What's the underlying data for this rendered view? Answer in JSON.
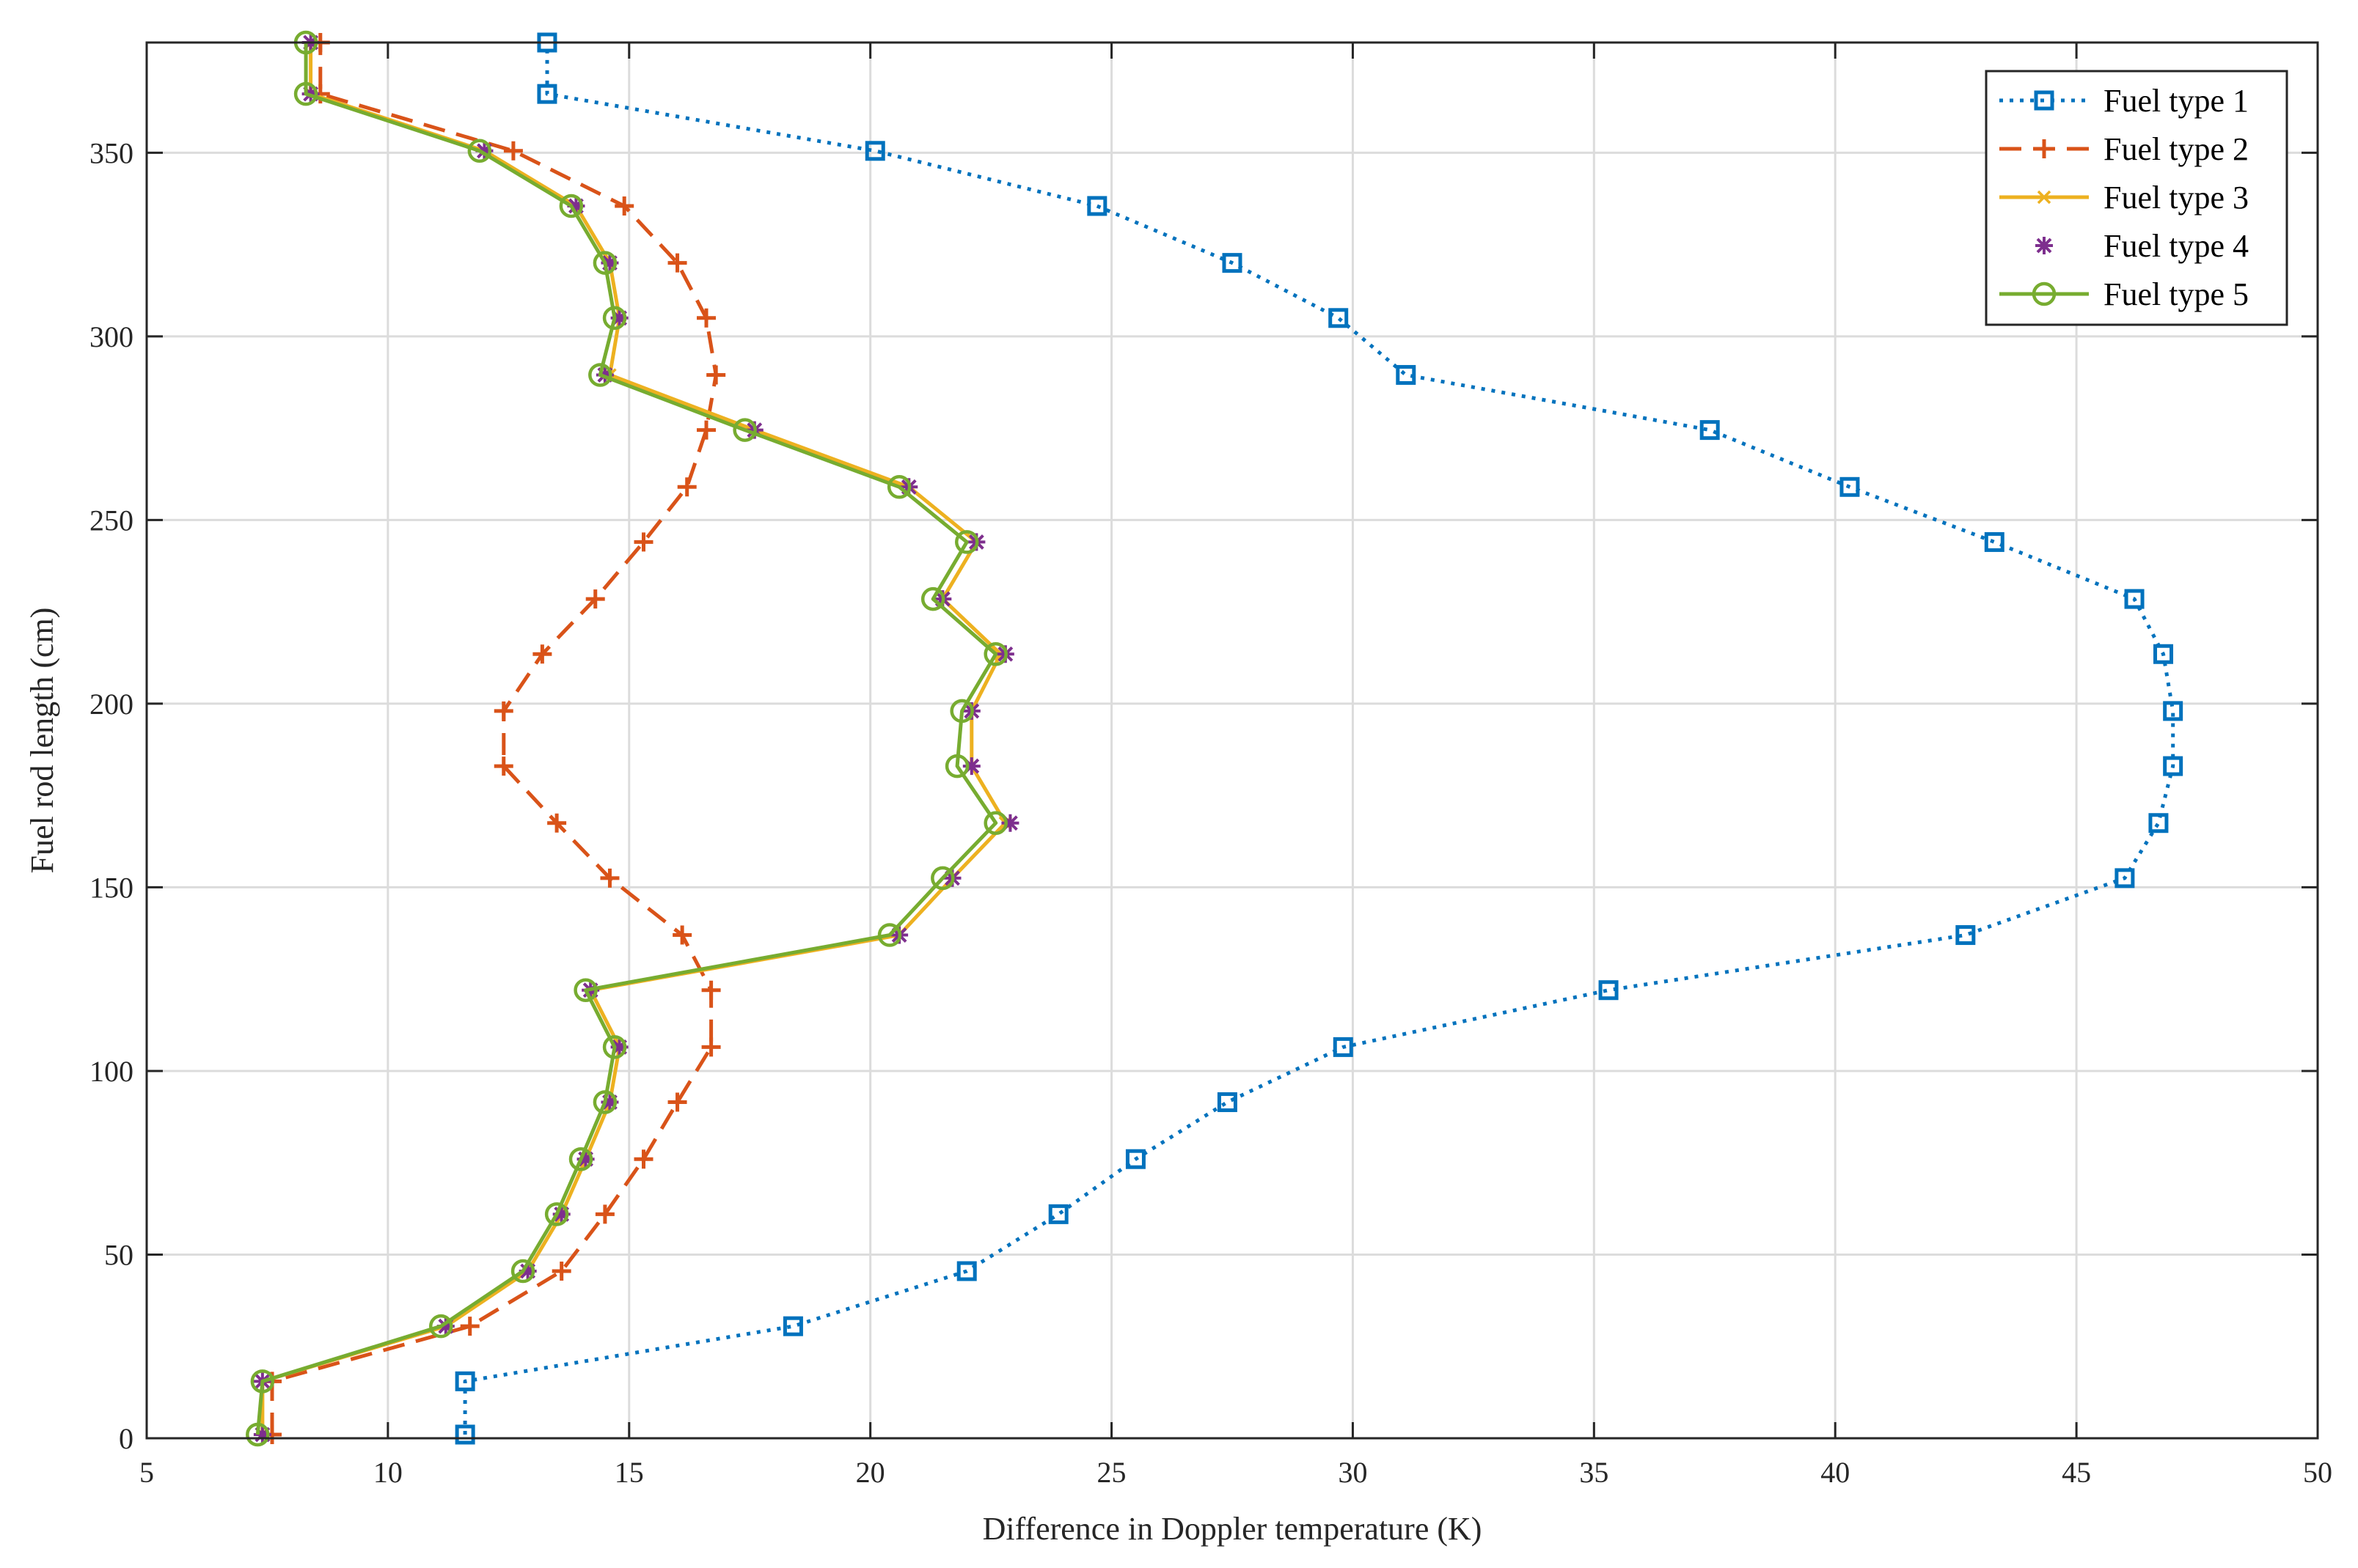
{
  "chart_data": {
    "type": "line",
    "xlabel": "Difference in Doppler temperature (K)",
    "ylabel": "Fuel rod length (cm)",
    "xlim": [
      5,
      50
    ],
    "ylim": [
      0,
      380
    ],
    "xticks": [
      5,
      10,
      15,
      20,
      25,
      30,
      35,
      40,
      45,
      50
    ],
    "yticks": [
      0,
      50,
      100,
      150,
      200,
      250,
      300,
      350
    ],
    "grid": true,
    "legend_position": "top-right",
    "y": [
      1,
      15.5,
      30.5,
      45.5,
      61,
      76,
      91.5,
      106.5,
      122,
      137,
      152.5,
      167.5,
      183,
      198,
      213.5,
      228.5,
      244,
      259,
      274.5,
      289.5,
      305,
      320,
      335.5,
      350.5,
      366,
      380
    ],
    "series": [
      {
        "name": "Fuel type 1",
        "color": "#0072BD",
        "line_style": "dotted",
        "marker": "square",
        "x": [
          11.6,
          11.6,
          18.4,
          22.0,
          23.9,
          25.5,
          27.4,
          29.8,
          35.3,
          42.7,
          46.0,
          46.7,
          47.0,
          47.0,
          46.8,
          46.2,
          43.3,
          40.3,
          37.4,
          31.1,
          29.7,
          27.5,
          24.7,
          20.1,
          13.3,
          13.3
        ]
      },
      {
        "name": "Fuel type 2",
        "color": "#D95319",
        "line_style": "dashed",
        "marker": "plus",
        "x": [
          7.6,
          7.6,
          11.7,
          13.6,
          14.5,
          15.3,
          16.0,
          16.7,
          16.7,
          16.1,
          14.6,
          13.5,
          12.4,
          12.4,
          13.2,
          14.3,
          15.3,
          16.2,
          16.6,
          16.8,
          16.6,
          16.0,
          14.9,
          12.6,
          8.6,
          8.6
        ]
      },
      {
        "name": "Fuel type 3",
        "color": "#EDB120",
        "line_style": "solid",
        "marker": "x",
        "x": [
          7.4,
          7.4,
          11.2,
          12.9,
          13.6,
          14.1,
          14.6,
          14.8,
          14.2,
          20.6,
          21.7,
          22.8,
          22.1,
          22.1,
          22.7,
          21.5,
          22.2,
          20.8,
          17.6,
          14.6,
          14.8,
          14.6,
          13.9,
          12.0,
          8.4,
          8.4
        ]
      },
      {
        "name": "Fuel type 4",
        "color": "#7E2F8E",
        "line_style": "none",
        "marker": "asterisk",
        "x": [
          7.4,
          7.4,
          11.2,
          12.9,
          13.6,
          14.1,
          14.6,
          14.8,
          14.2,
          20.6,
          21.7,
          22.9,
          22.1,
          22.1,
          22.8,
          21.5,
          22.2,
          20.8,
          17.6,
          14.5,
          14.8,
          14.6,
          13.9,
          12.0,
          8.4,
          8.4
        ]
      },
      {
        "name": "Fuel type 5",
        "color": "#77AC30",
        "line_style": "solid",
        "marker": "circle",
        "x": [
          7.3,
          7.4,
          11.1,
          12.8,
          13.5,
          14.0,
          14.5,
          14.7,
          14.1,
          20.4,
          21.5,
          22.6,
          21.8,
          21.9,
          22.6,
          21.3,
          22.0,
          20.6,
          17.4,
          14.4,
          14.7,
          14.5,
          13.8,
          11.9,
          8.3,
          8.3
        ]
      }
    ]
  }
}
